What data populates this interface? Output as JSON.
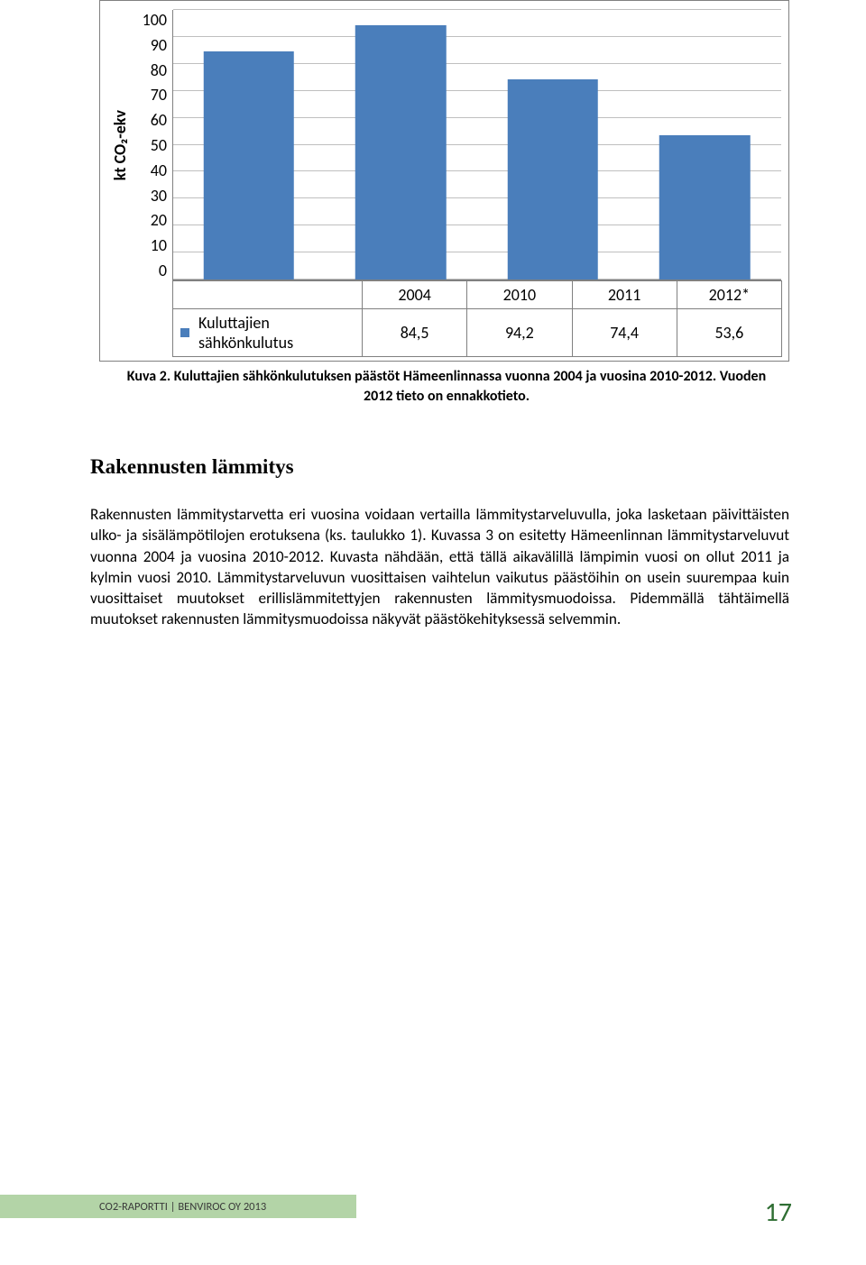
{
  "chart": {
    "type": "bar",
    "ylabel": "kt CO₂-ekv",
    "ylabel_fontsize": 18,
    "ylim": [
      0,
      100
    ],
    "ytick_step": 10,
    "yticks": [
      "100",
      "90",
      "80",
      "70",
      "60",
      "50",
      "40",
      "30",
      "20",
      "10",
      "0"
    ],
    "categories": [
      "2004",
      "2010",
      "2011",
      "2012*"
    ],
    "series_label": "Kuluttajien sähkönkulutus",
    "values": [
      84.5,
      94.2,
      74.4,
      53.6
    ],
    "display_values": [
      "84,5",
      "94,2",
      "74,4",
      "53,6"
    ],
    "bar_color": "#4a7ebb",
    "grid_color": "#bfbfbf",
    "axis_color": "#808080",
    "background_color": "#ffffff",
    "bar_width_pct": 60,
    "legend_swatch_color": "#4a7ebb"
  },
  "caption": {
    "line1": "Kuva 2. Kuluttajien sähkönkulutuksen päästöt Hämeenlinnassa  vuonna 2004 ja vuosina 2010-2012. Vuoden",
    "line2": "2012 tieto on ennakkotieto."
  },
  "heading": "Rakennusten lämmitys",
  "paragraph": "Rakennusten lämmitystarvetta eri vuosina voidaan vertailla lämmitystarveluvulla, joka lasketaan päivittäisten ulko- ja sisälämpötilojen erotuksena (ks. taulukko 1). Kuvassa 3 on esitetty Hämeenlinnan lämmitystarveluvut vuonna 2004 ja vuosina 2010-2012. Kuvasta nähdään, että tällä aikavälillä lämpimin vuosi on ollut 2011 ja kylmin vuosi 2010. Lämmitystarveluvun vuosittaisen vaihtelun vaikutus päästöihin on usein suurempaa kuin vuosittaiset muutokset erillislämmitettyjen rakennusten lämmitysmuodoissa. Pidemmällä tähtäimellä muutokset rakennusten lämmitysmuodoissa näkyvät päästökehityksessä selvemmin.",
  "footer": "CO2-RAPORTTI | BENVIROC OY 2013",
  "page_number": "17",
  "footer_bg": "#b3d4a7",
  "page_number_color": "#2f6e33"
}
